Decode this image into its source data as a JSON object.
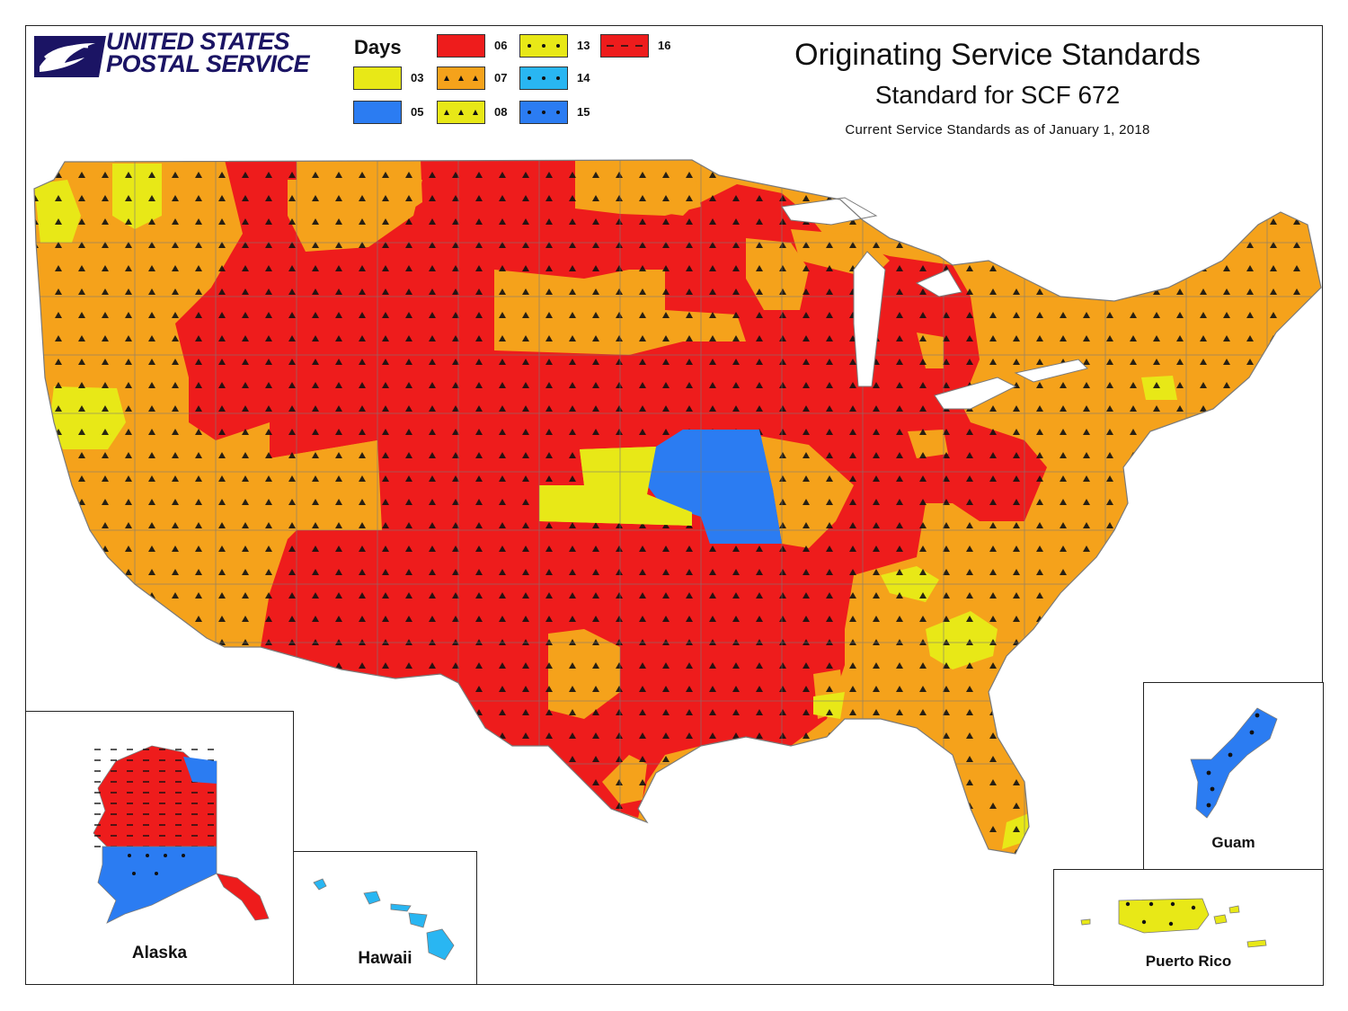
{
  "header": {
    "logo_text_line1": "UNITED STATES",
    "logo_text_line2": "POSTAL SERVICE",
    "brand_color": "#1b1464"
  },
  "legend": {
    "title": "Days",
    "items": [
      {
        "label": "03",
        "color": "#e8e817",
        "pattern": "none"
      },
      {
        "label": "05",
        "color": "#2b7cf2",
        "pattern": "none"
      },
      {
        "label": "06",
        "color": "#ee1c1c",
        "pattern": "none"
      },
      {
        "label": "07",
        "color": "#f5a21b",
        "pattern": "triangle"
      },
      {
        "label": "08",
        "color": "#e8e817",
        "pattern": "triangle"
      },
      {
        "label": "13",
        "color": "#e8e817",
        "pattern": "dot"
      },
      {
        "label": "14",
        "color": "#29b6f2",
        "pattern": "dot"
      },
      {
        "label": "15",
        "color": "#2b7cf2",
        "pattern": "dot"
      },
      {
        "label": "16",
        "color": "#ee1c1c",
        "pattern": "dash"
      }
    ]
  },
  "titles": {
    "main": "Originating Service Standards",
    "sub": "Standard for SCF 672",
    "small": "Current Service Standards as of January 1, 2018"
  },
  "insets": {
    "alaska": "Alaska",
    "hawaii": "Hawaii",
    "guam": "Guam",
    "puerto_rico": "Puerto Rico"
  },
  "colors": {
    "red": "#ee1c1c",
    "orange": "#f5a21b",
    "yellow": "#e8e817",
    "blue": "#2b7cf2",
    "light_blue": "#29b6f2",
    "border": "#7a7a7a"
  }
}
